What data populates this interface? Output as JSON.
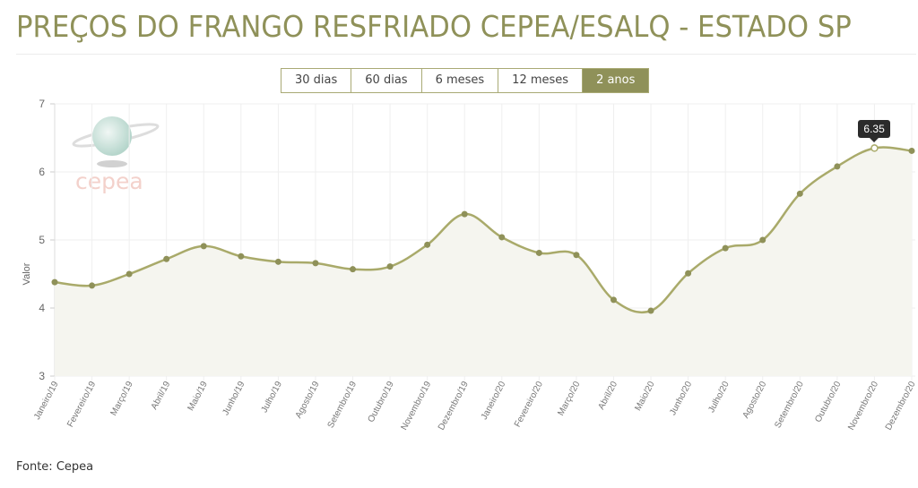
{
  "header": {
    "title": "PREÇOS DO FRANGO RESFRIADO CEPEA/ESALQ - ESTADO SP"
  },
  "range_buttons": [
    {
      "label": "30 dias",
      "active": false
    },
    {
      "label": "60 dias",
      "active": false
    },
    {
      "label": "6 meses",
      "active": false
    },
    {
      "label": "12 meses",
      "active": false
    },
    {
      "label": "2 anos",
      "active": true
    }
  ],
  "logo": {
    "text": "cepea"
  },
  "tooltip": {
    "label": "6.35",
    "index": 22
  },
  "footer": {
    "source": "Fonte: Cepea"
  },
  "colors": {
    "accent": "#8f9159",
    "line": "#a9aa6a",
    "fill": "#f5f5ef",
    "grid": "#ebebeb",
    "logo_text": "#f2c9c2"
  },
  "chart_data": {
    "type": "area",
    "title": "PREÇOS DO FRANGO RESFRIADO CEPEA/ESALQ - ESTADO SP",
    "xlabel": "",
    "ylabel": "Valor",
    "ylim": [
      3,
      7
    ],
    "yticks": [
      3,
      4,
      5,
      6,
      7
    ],
    "grid": true,
    "legend": "none",
    "categories": [
      "Janeiro/19",
      "Fevereiro/19",
      "Março/19",
      "Abril/19",
      "Maio/19",
      "Junho/19",
      "Julho/19",
      "Agosto/19",
      "Setembro/19",
      "Outubro/19",
      "Novembro/19",
      "Dezembro/19",
      "Janeiro/20",
      "Fevereiro/20",
      "Março/20",
      "Abril/20",
      "Maio/20",
      "Junho/20",
      "Julho/20",
      "Agosto/20",
      "Setembro/20",
      "Outubro/20",
      "Novembro/20",
      "Dezembro/20"
    ],
    "series": [
      {
        "name": "Valor",
        "values": [
          4.38,
          4.33,
          4.5,
          4.72,
          4.91,
          4.76,
          4.68,
          4.66,
          4.57,
          4.61,
          4.93,
          5.38,
          5.04,
          4.81,
          4.78,
          4.12,
          3.96,
          4.51,
          4.88,
          5.0,
          5.68,
          6.08,
          6.35,
          6.31
        ]
      }
    ],
    "annotations": [
      {
        "type": "tooltip",
        "category": "Novembro/20",
        "value": "6.35"
      }
    ]
  }
}
